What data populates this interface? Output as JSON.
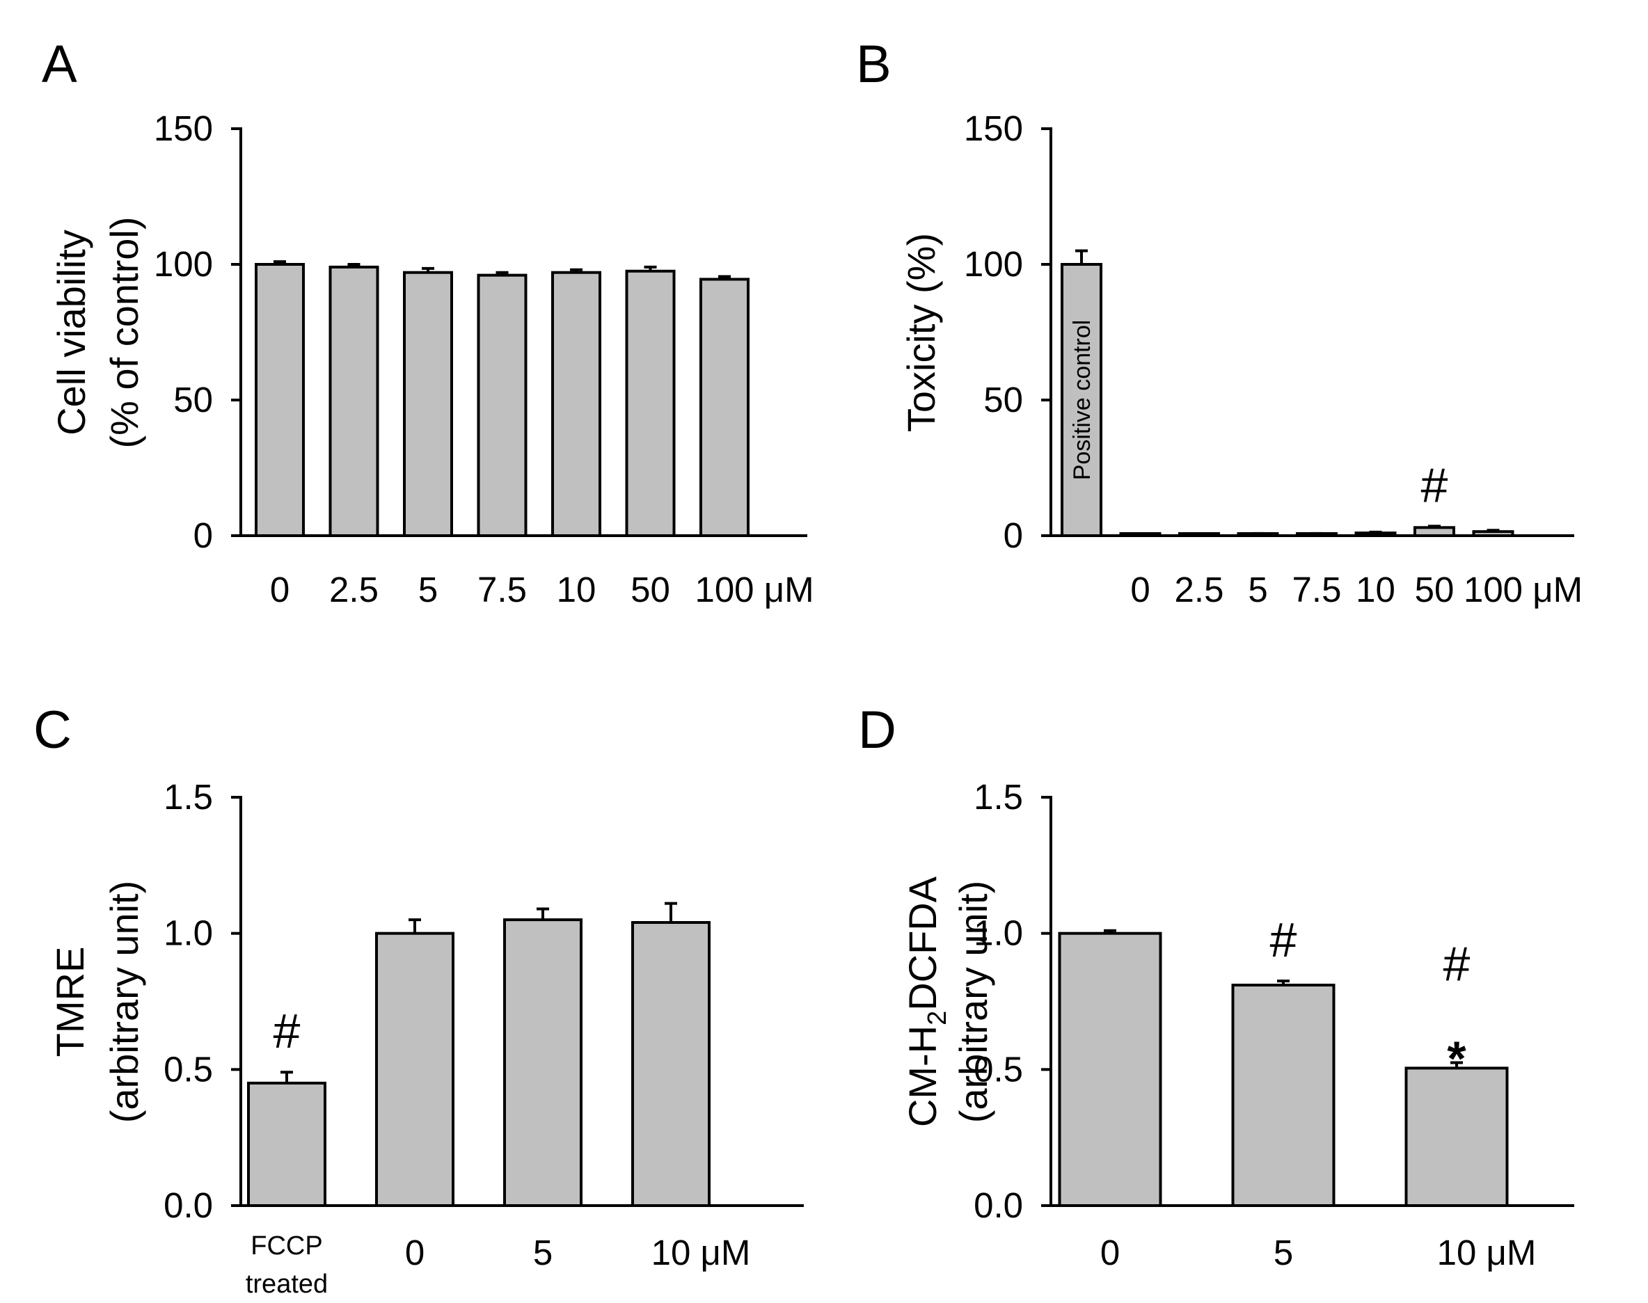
{
  "colors": {
    "bar_fill": "#c0c0c0",
    "axis": "#000000",
    "background": "#ffffff"
  },
  "chart_data": [
    {
      "panel": "A",
      "type": "bar",
      "ylabel": [
        "Cell viability",
        "(% of control)"
      ],
      "yticks": [
        "0",
        "50",
        "100",
        "150"
      ],
      "ytick_values": [
        0,
        50,
        100,
        150
      ],
      "ylim": [
        0,
        150
      ],
      "categories": [
        "0",
        "2.5",
        "5",
        "7.5",
        "10",
        "50",
        "100 μM"
      ],
      "values": [
        100,
        99,
        97,
        96,
        97,
        97.5,
        94.5
      ],
      "errors": [
        1.0,
        1.0,
        1.5,
        1.0,
        1.0,
        1.5,
        1.0
      ],
      "annotations": []
    },
    {
      "panel": "B",
      "type": "bar",
      "ylabel": [
        "Toxicity (%)"
      ],
      "yticks": [
        "0",
        "50",
        "100",
        "150"
      ],
      "ytick_values": [
        0,
        50,
        100,
        150
      ],
      "ylim": [
        0,
        150
      ],
      "categories": [
        "",
        "0",
        "2.5",
        "5",
        "7.5",
        "10",
        "50",
        "100 μM"
      ],
      "values": [
        100,
        0,
        0,
        0.5,
        0.5,
        1.0,
        3.0,
        1.5
      ],
      "errors": [
        5.0,
        0,
        0,
        0.3,
        0.3,
        0.3,
        0.5,
        0.5
      ],
      "bar_labels": [
        "Positive control",
        "",
        "",
        "",
        "",
        "",
        "",
        ""
      ],
      "annotations": [
        {
          "text": "#",
          "bar": 6
        }
      ]
    },
    {
      "panel": "C",
      "type": "bar",
      "ylabel": [
        "TMRE",
        "(arbitrary unit)"
      ],
      "yticks": [
        "0.0",
        "0.5",
        "1.0",
        "1.5"
      ],
      "ytick_values": [
        0,
        0.5,
        1.0,
        1.5
      ],
      "ylim": [
        0,
        1.5
      ],
      "categories": [
        "FCCP\ntreated",
        "0",
        "5",
        "10 μM"
      ],
      "values": [
        0.45,
        1.0,
        1.05,
        1.04
      ],
      "errors": [
        0.04,
        0.05,
        0.04,
        0.07
      ],
      "annotations": [
        {
          "text": "#",
          "bar": 0
        }
      ]
    },
    {
      "panel": "D",
      "type": "bar",
      "ylabel": [
        "CM-H",
        "2",
        "DCFDA",
        "(arbitrary unit)"
      ],
      "yticks": [
        "0.0",
        "0.5",
        "1.0",
        "1.5"
      ],
      "ytick_values": [
        0,
        0.5,
        1.0,
        1.5
      ],
      "ylim": [
        0,
        1.5
      ],
      "categories": [
        "0",
        "5",
        "10 μM"
      ],
      "values": [
        1.0,
        0.81,
        0.505
      ],
      "errors": [
        0.01,
        0.015,
        0.02
      ],
      "annotations": [
        {
          "text": "#",
          "bar": 1
        },
        {
          "text": "#",
          "bar": 2
        },
        {
          "text": "*",
          "bar": 2
        }
      ]
    }
  ]
}
